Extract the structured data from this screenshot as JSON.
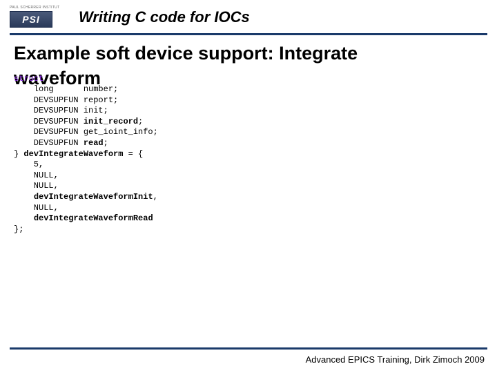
{
  "logo": {
    "top_text": "PAUL SCHERRER INSTITUT",
    "box_text": "PSI"
  },
  "header_title": "Writing C code for IOCs",
  "slide_title_line1": "Example soft device support: Integrate",
  "slide_title_line2": "waveform",
  "code": {
    "l0a": "struct",
    "l0b": " {",
    "l1a": "    long      number;",
    "l2a": "    DEVSUPFUN report;",
    "l3a": "    DEVSUPFUN init;",
    "l4a": "    DEVSUPFUN ",
    "l4b": "init_record",
    "l4c": ";",
    "l5a": "    DEVSUPFUN get_ioint_info;",
    "l6a": "    DEVSUPFUN ",
    "l6b": "read",
    "l6c": ";",
    "l7a": "} ",
    "l7b": "devIntegrateWaveform",
    "l7c": " = {",
    "l8a": "    5,",
    "l9a": "    NULL,",
    "l10a": "    NULL,",
    "l11a": "    ",
    "l11b": "devIntegrateWaveformInit",
    "l11c": ",",
    "l12a": "    NULL,",
    "l13a": "    ",
    "l13b": "devIntegrateWaveformRead",
    "l14a": "};"
  },
  "footer": "Advanced EPICS Training, Dirk Zimoch 2009",
  "colors": {
    "rule": "#1a3a6a",
    "keyword": "#8a2be2"
  }
}
